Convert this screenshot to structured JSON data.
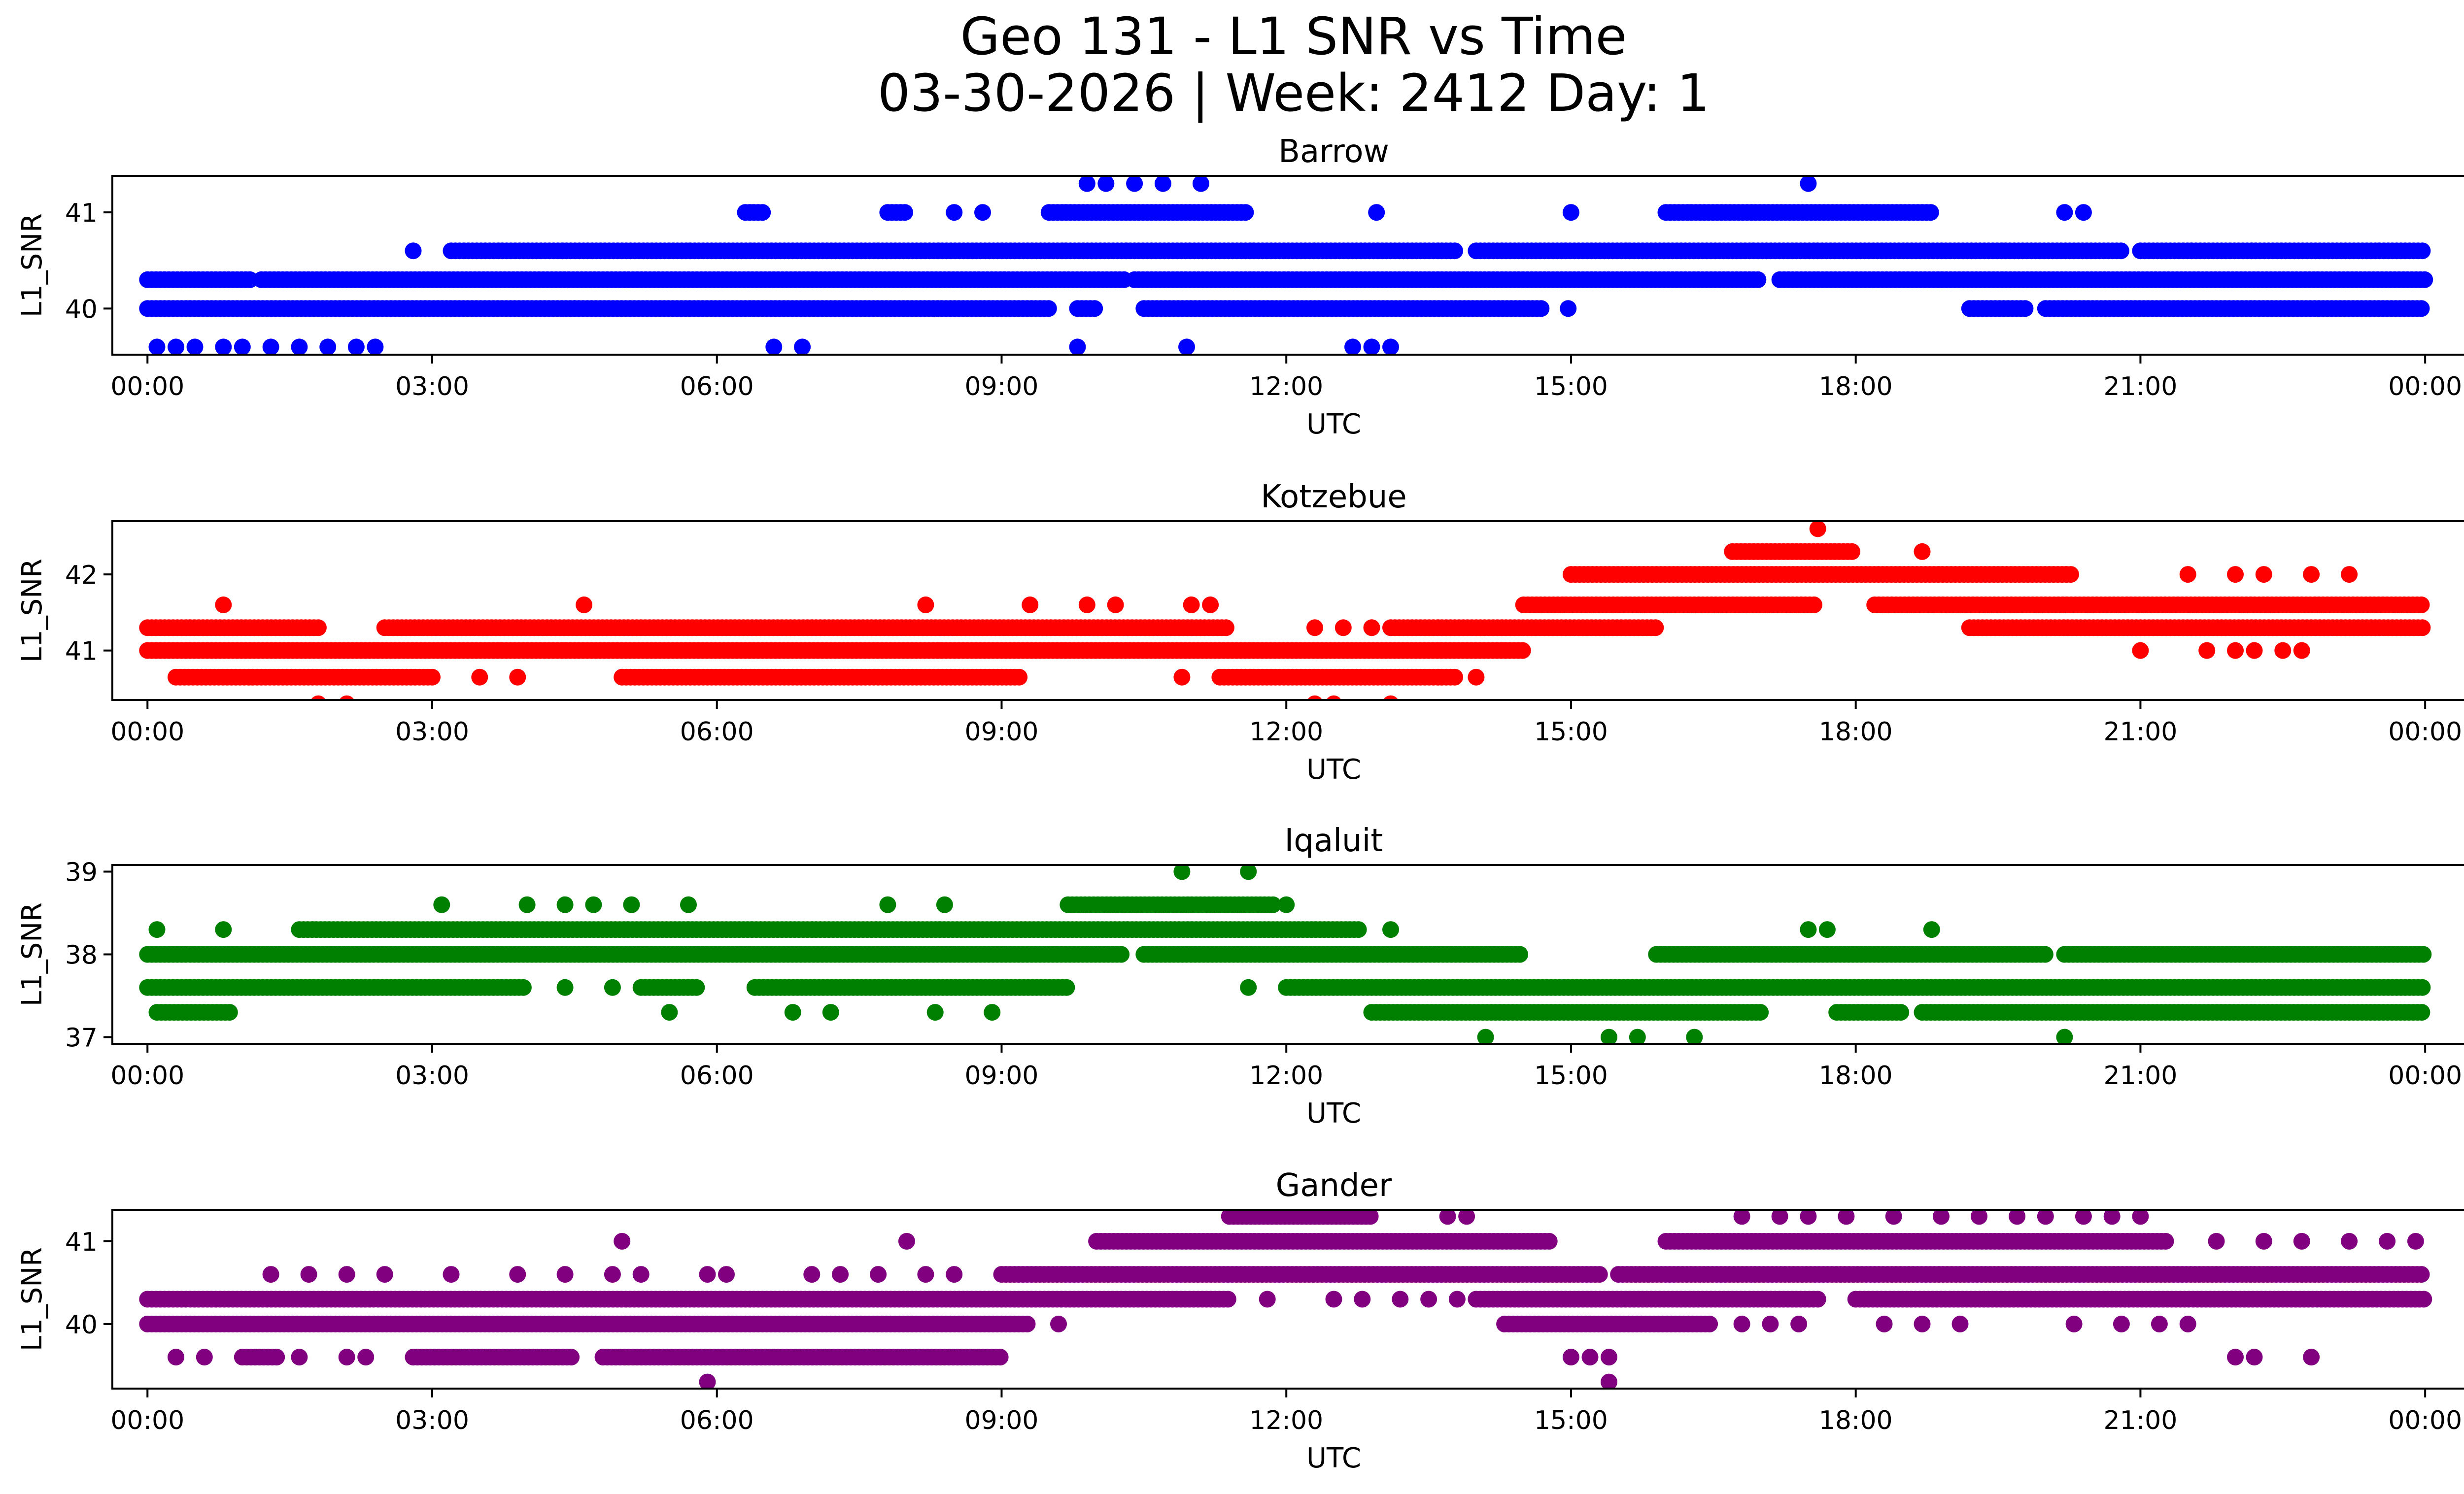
{
  "figure": {
    "title_line1": "Geo 131 - L1 SNR vs Time",
    "title_line2": "03-30-2026 | Week: 2412 Day: 1"
  },
  "chart_data": [
    {
      "type": "scatter",
      "title": "Barrow",
      "xlabel": "UTC",
      "ylabel": "L1_SNR",
      "color": "#0000ff",
      "xlim": [
        -0.37,
        25.37
      ],
      "ylim": [
        39.52,
        41.38
      ],
      "yticks": [
        40,
        41
      ],
      "xticks": [
        0,
        3,
        6,
        9,
        12,
        15,
        18,
        21,
        24
      ],
      "xtick_labels": [
        "00:00",
        "03:00",
        "06:00",
        "09:00",
        "12:00",
        "15:00",
        "18:00",
        "21:00",
        "00:00"
      ],
      "bands": [
        {
          "y": 40.0,
          "segments": [
            [
              0,
              4.5
            ],
            [
              4.5,
              9.5
            ],
            [
              9.8,
              10.0
            ],
            [
              10.5,
              14.7
            ],
            [
              14.97,
              14.97
            ],
            [
              19.2,
              19.8
            ],
            [
              20.0,
              24.0
            ]
          ]
        },
        {
          "y": 40.3,
          "segments": [
            [
              0,
              1.1
            ],
            [
              1.2,
              10.3
            ],
            [
              10.4,
              17.0
            ],
            [
              17.2,
              24.0
            ]
          ]
        },
        {
          "y": 40.6,
          "segments": [
            [
              2.8,
              2.8
            ],
            [
              3.2,
              13.8
            ],
            [
              14.0,
              20.8
            ],
            [
              21.0,
              24.0
            ]
          ]
        },
        {
          "y": 41.0,
          "segments": [
            [
              6.3,
              6.5
            ],
            [
              7.8,
              8.0
            ],
            [
              9.5,
              11.6
            ],
            [
              16.0,
              18.8
            ]
          ]
        }
      ],
      "points": [
        {
          "x": 0.1,
          "y": 39.6
        },
        {
          "x": 0.3,
          "y": 39.6
        },
        {
          "x": 0.5,
          "y": 39.6
        },
        {
          "x": 0.8,
          "y": 39.6
        },
        {
          "x": 1.0,
          "y": 39.6
        },
        {
          "x": 1.3,
          "y": 39.6
        },
        {
          "x": 1.6,
          "y": 39.6
        },
        {
          "x": 1.9,
          "y": 39.6
        },
        {
          "x": 2.2,
          "y": 39.6
        },
        {
          "x": 2.4,
          "y": 39.6
        },
        {
          "x": 6.6,
          "y": 39.6
        },
        {
          "x": 6.9,
          "y": 39.6
        },
        {
          "x": 9.8,
          "y": 39.6
        },
        {
          "x": 10.95,
          "y": 39.6
        },
        {
          "x": 12.7,
          "y": 39.6
        },
        {
          "x": 12.9,
          "y": 39.6
        },
        {
          "x": 13.1,
          "y": 39.6
        },
        {
          "x": 8.5,
          "y": 41.0
        },
        {
          "x": 8.8,
          "y": 41.0
        },
        {
          "x": 12.95,
          "y": 41.0
        },
        {
          "x": 15.0,
          "y": 41.0
        },
        {
          "x": 20.2,
          "y": 41.0
        },
        {
          "x": 20.4,
          "y": 41.0
        },
        {
          "x": 9.9,
          "y": 41.3
        },
        {
          "x": 10.1,
          "y": 41.3
        },
        {
          "x": 10.4,
          "y": 41.3
        },
        {
          "x": 10.7,
          "y": 41.3
        },
        {
          "x": 11.1,
          "y": 41.3
        },
        {
          "x": 17.5,
          "y": 41.3
        }
      ]
    },
    {
      "type": "scatter",
      "title": "Kotzebue",
      "xlabel": "UTC",
      "ylabel": "L1_SNR",
      "color": "#ff0000",
      "xlim": [
        -0.37,
        25.37
      ],
      "ylim": [
        40.35,
        42.7
      ],
      "yticks": [
        41,
        42
      ],
      "xticks": [
        0,
        3,
        6,
        9,
        12,
        15,
        18,
        21,
        24
      ],
      "xtick_labels": [
        "00:00",
        "03:00",
        "06:00",
        "09:00",
        "12:00",
        "15:00",
        "18:00",
        "21:00",
        "00:00"
      ],
      "bands": [
        {
          "y": 40.65,
          "segments": [
            [
              0.3,
              3.0
            ],
            [
              5.0,
              9.2
            ],
            [
              11.3,
              13.8
            ]
          ]
        },
        {
          "y": 41.0,
          "segments": [
            [
              0,
              14.5
            ]
          ]
        },
        {
          "y": 41.3,
          "segments": [
            [
              0,
              1.8
            ],
            [
              2.5,
              11.4
            ],
            [
              13.1,
              15.9
            ],
            [
              19.2,
              24.0
            ]
          ]
        },
        {
          "y": 41.6,
          "segments": [
            [
              14.5,
              17.6
            ],
            [
              18.2,
              24.0
            ]
          ]
        },
        {
          "y": 42.0,
          "segments": [
            [
              15.0,
              20.3
            ]
          ]
        },
        {
          "y": 42.3,
          "segments": [
            [
              16.7,
              18.0
            ]
          ]
        }
      ],
      "points": [
        {
          "x": 1.8,
          "y": 40.3
        },
        {
          "x": 2.1,
          "y": 40.3
        },
        {
          "x": 12.3,
          "y": 40.3
        },
        {
          "x": 12.5,
          "y": 40.3
        },
        {
          "x": 13.1,
          "y": 40.3
        },
        {
          "x": 3.5,
          "y": 40.65
        },
        {
          "x": 3.9,
          "y": 40.65
        },
        {
          "x": 10.9,
          "y": 40.65
        },
        {
          "x": 14.0,
          "y": 40.65
        },
        {
          "x": 0.8,
          "y": 41.6
        },
        {
          "x": 4.6,
          "y": 41.6
        },
        {
          "x": 8.2,
          "y": 41.6
        },
        {
          "x": 9.3,
          "y": 41.6
        },
        {
          "x": 9.9,
          "y": 41.6
        },
        {
          "x": 10.2,
          "y": 41.6
        },
        {
          "x": 11.0,
          "y": 41.6
        },
        {
          "x": 11.2,
          "y": 41.6
        },
        {
          "x": 12.3,
          "y": 41.3
        },
        {
          "x": 12.6,
          "y": 41.3
        },
        {
          "x": 12.9,
          "y": 41.3
        },
        {
          "x": 21.0,
          "y": 41.0
        },
        {
          "x": 21.7,
          "y": 41.0
        },
        {
          "x": 22.0,
          "y": 41.0
        },
        {
          "x": 22.2,
          "y": 41.0
        },
        {
          "x": 22.5,
          "y": 41.0
        },
        {
          "x": 22.7,
          "y": 41.0
        },
        {
          "x": 21.5,
          "y": 42.0
        },
        {
          "x": 22.0,
          "y": 42.0
        },
        {
          "x": 22.3,
          "y": 42.0
        },
        {
          "x": 22.8,
          "y": 42.0
        },
        {
          "x": 23.2,
          "y": 42.0
        },
        {
          "x": 18.7,
          "y": 42.3
        },
        {
          "x": 17.6,
          "y": 42.6
        }
      ]
    },
    {
      "type": "scatter",
      "title": "Iqaluit",
      "xlabel": "UTC",
      "ylabel": "L1_SNR",
      "color": "#008000",
      "xlim": [
        -0.37,
        25.37
      ],
      "ylim": [
        36.92,
        39.08
      ],
      "yticks": [
        37,
        38,
        39
      ],
      "xticks": [
        0,
        3,
        6,
        9,
        12,
        15,
        18,
        21,
        24
      ],
      "xtick_labels": [
        "00:00",
        "03:00",
        "06:00",
        "09:00",
        "12:00",
        "15:00",
        "18:00",
        "21:00",
        "00:00"
      ],
      "bands": [
        {
          "y": 37.3,
          "segments": [
            [
              0.1,
              0.9
            ],
            [
              12.9,
              17.0
            ],
            [
              17.8,
              18.5
            ],
            [
              18.7,
              24.0
            ]
          ]
        },
        {
          "y": 37.6,
          "segments": [
            [
              0,
              4.0
            ],
            [
              5.2,
              5.8
            ],
            [
              6.4,
              9.7
            ],
            [
              12.0,
              24.0
            ]
          ]
        },
        {
          "y": 38.0,
          "segments": [
            [
              0,
              10.3
            ],
            [
              10.5,
              14.5
            ],
            [
              15.9,
              20.0
            ],
            [
              20.2,
              24.0
            ]
          ]
        },
        {
          "y": 38.3,
          "segments": [
            [
              1.6,
              12.8
            ]
          ]
        },
        {
          "y": 38.6,
          "segments": [
            [
              9.7,
              11.9
            ]
          ]
        }
      ],
      "points": [
        {
          "x": 0.1,
          "y": 38.3
        },
        {
          "x": 0.8,
          "y": 38.3
        },
        {
          "x": 13.1,
          "y": 38.3
        },
        {
          "x": 17.5,
          "y": 38.3
        },
        {
          "x": 17.7,
          "y": 38.3
        },
        {
          "x": 18.8,
          "y": 38.3
        },
        {
          "x": 3.1,
          "y": 38.6
        },
        {
          "x": 4.0,
          "y": 38.6
        },
        {
          "x": 4.4,
          "y": 38.6
        },
        {
          "x": 4.7,
          "y": 38.6
        },
        {
          "x": 5.1,
          "y": 38.6
        },
        {
          "x": 5.7,
          "y": 38.6
        },
        {
          "x": 7.8,
          "y": 38.6
        },
        {
          "x": 8.4,
          "y": 38.6
        },
        {
          "x": 12.0,
          "y": 38.6
        },
        {
          "x": 10.9,
          "y": 39.0
        },
        {
          "x": 11.6,
          "y": 39.0
        },
        {
          "x": 4.4,
          "y": 37.6
        },
        {
          "x": 4.9,
          "y": 37.6
        },
        {
          "x": 11.6,
          "y": 37.6
        },
        {
          "x": 5.5,
          "y": 37.3
        },
        {
          "x": 6.8,
          "y": 37.3
        },
        {
          "x": 7.2,
          "y": 37.3
        },
        {
          "x": 8.3,
          "y": 37.3
        },
        {
          "x": 8.9,
          "y": 37.3
        },
        {
          "x": 14.1,
          "y": 37.0
        },
        {
          "x": 15.4,
          "y": 37.0
        },
        {
          "x": 15.7,
          "y": 37.0
        },
        {
          "x": 16.3,
          "y": 37.0
        },
        {
          "x": 20.2,
          "y": 37.0
        }
      ]
    },
    {
      "type": "scatter",
      "title": "Gander",
      "xlabel": "UTC",
      "ylabel": "L1_SNR",
      "color": "#800080",
      "xlim": [
        -0.37,
        25.37
      ],
      "ylim": [
        39.22,
        41.38
      ],
      "yticks": [
        40,
        41
      ],
      "xticks": [
        0,
        3,
        6,
        9,
        12,
        15,
        18,
        21,
        24
      ],
      "xtick_labels": [
        "00:00",
        "03:00",
        "06:00",
        "09:00",
        "12:00",
        "15:00",
        "18:00",
        "21:00",
        "00:00"
      ],
      "bands": [
        {
          "y": 39.6,
          "segments": [
            [
              1.0,
              1.4
            ],
            [
              2.8,
              4.5
            ],
            [
              4.8,
              9.0
            ]
          ]
        },
        {
          "y": 40.0,
          "segments": [
            [
              0,
              9.3
            ],
            [
              14.3,
              16.5
            ]
          ]
        },
        {
          "y": 40.3,
          "segments": [
            [
              0,
              11.4
            ],
            [
              14.0,
              17.6
            ],
            [
              18.0,
              24.0
            ]
          ]
        },
        {
          "y": 40.6,
          "segments": [
            [
              9.0,
              15.3
            ],
            [
              15.5,
              24.0
            ]
          ]
        },
        {
          "y": 41.0,
          "segments": [
            [
              10.0,
              14.8
            ],
            [
              16.0,
              21.3
            ]
          ]
        },
        {
          "y": 41.3,
          "segments": [
            [
              11.4,
              12.9
            ]
          ]
        }
      ],
      "points": [
        {
          "x": 0.3,
          "y": 39.6
        },
        {
          "x": 0.6,
          "y": 39.6
        },
        {
          "x": 1.6,
          "y": 39.6
        },
        {
          "x": 2.1,
          "y": 39.6
        },
        {
          "x": 2.3,
          "y": 39.6
        },
        {
          "x": 15.0,
          "y": 39.6
        },
        {
          "x": 15.2,
          "y": 39.6
        },
        {
          "x": 15.4,
          "y": 39.6
        },
        {
          "x": 22.0,
          "y": 39.6
        },
        {
          "x": 22.2,
          "y": 39.6
        },
        {
          "x": 22.8,
          "y": 39.6
        },
        {
          "x": 5.9,
          "y": 39.3
        },
        {
          "x": 15.4,
          "y": 39.3
        },
        {
          "x": 1.3,
          "y": 40.6
        },
        {
          "x": 1.7,
          "y": 40.6
        },
        {
          "x": 2.1,
          "y": 40.6
        },
        {
          "x": 2.5,
          "y": 40.6
        },
        {
          "x": 3.2,
          "y": 40.6
        },
        {
          "x": 3.9,
          "y": 40.6
        },
        {
          "x": 4.4,
          "y": 40.6
        },
        {
          "x": 4.9,
          "y": 40.6
        },
        {
          "x": 5.2,
          "y": 40.6
        },
        {
          "x": 5.9,
          "y": 40.6
        },
        {
          "x": 6.1,
          "y": 40.6
        },
        {
          "x": 7.0,
          "y": 40.6
        },
        {
          "x": 7.3,
          "y": 40.6
        },
        {
          "x": 7.7,
          "y": 40.6
        },
        {
          "x": 8.2,
          "y": 40.6
        },
        {
          "x": 8.5,
          "y": 40.6
        },
        {
          "x": 5.0,
          "y": 41.0
        },
        {
          "x": 8.0,
          "y": 41.0
        },
        {
          "x": 11.8,
          "y": 40.3
        },
        {
          "x": 12.5,
          "y": 40.3
        },
        {
          "x": 12.8,
          "y": 40.3
        },
        {
          "x": 13.2,
          "y": 40.3
        },
        {
          "x": 13.5,
          "y": 40.3
        },
        {
          "x": 13.8,
          "y": 40.3
        },
        {
          "x": 9.6,
          "y": 40.0
        },
        {
          "x": 16.8,
          "y": 40.0
        },
        {
          "x": 17.1,
          "y": 40.0
        },
        {
          "x": 17.4,
          "y": 40.0
        },
        {
          "x": 18.3,
          "y": 40.0
        },
        {
          "x": 18.7,
          "y": 40.0
        },
        {
          "x": 19.1,
          "y": 40.0
        },
        {
          "x": 20.3,
          "y": 40.0
        },
        {
          "x": 20.8,
          "y": 40.0
        },
        {
          "x": 21.2,
          "y": 40.0
        },
        {
          "x": 21.5,
          "y": 40.0
        },
        {
          "x": 13.7,
          "y": 41.3
        },
        {
          "x": 13.9,
          "y": 41.3
        },
        {
          "x": 16.8,
          "y": 41.3
        },
        {
          "x": 17.2,
          "y": 41.3
        },
        {
          "x": 17.5,
          "y": 41.3
        },
        {
          "x": 17.9,
          "y": 41.3
        },
        {
          "x": 18.4,
          "y": 41.3
        },
        {
          "x": 18.9,
          "y": 41.3
        },
        {
          "x": 19.3,
          "y": 41.3
        },
        {
          "x": 19.7,
          "y": 41.3
        },
        {
          "x": 20.0,
          "y": 41.3
        },
        {
          "x": 20.4,
          "y": 41.3
        },
        {
          "x": 20.7,
          "y": 41.3
        },
        {
          "x": 21.0,
          "y": 41.3
        },
        {
          "x": 21.8,
          "y": 41.0
        },
        {
          "x": 22.3,
          "y": 41.0
        },
        {
          "x": 22.7,
          "y": 41.0
        },
        {
          "x": 23.2,
          "y": 41.0
        },
        {
          "x": 23.6,
          "y": 41.0
        },
        {
          "x": 23.9,
          "y": 41.0
        }
      ]
    }
  ]
}
